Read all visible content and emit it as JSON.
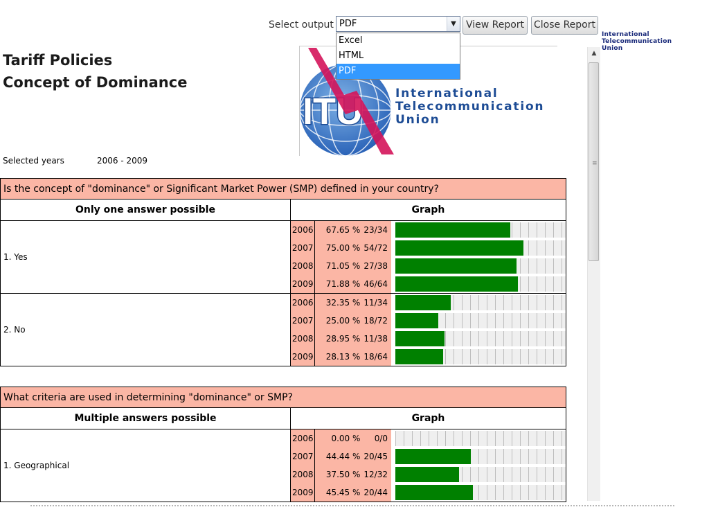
{
  "toolbar": {
    "output_label": "Select output",
    "selected_output": "PDF",
    "options": [
      "Excel",
      "HTML",
      "PDF"
    ],
    "view_report": "View Report",
    "close_report": "Close Report"
  },
  "corner_logo": [
    "International",
    "Telecommunication",
    "Union"
  ],
  "report": {
    "title_line1": "Tariff Policies",
    "title_line2": "Concept of Dominance",
    "logo_text": [
      "International",
      "Telecommunication",
      "Union"
    ],
    "logo_letters": "ITU",
    "selected_years_label": "Selected years",
    "selected_years_value": "2006 - 2009"
  },
  "questions": [
    {
      "question": "Is the concept of \"dominance\" or Significant Market Power (SMP) defined in your country?",
      "answers_header": "Only one answer possible",
      "graph_header": "Graph",
      "answers": [
        {
          "label": "1. Yes",
          "rows": [
            {
              "year": "2006",
              "pct": "67.65 %",
              "frac": "23/34",
              "value": 67.65
            },
            {
              "year": "2007",
              "pct": "75.00 %",
              "frac": "54/72",
              "value": 75.0
            },
            {
              "year": "2008",
              "pct": "71.05 %",
              "frac": "27/38",
              "value": 71.05
            },
            {
              "year": "2009",
              "pct": "71.88 %",
              "frac": "46/64",
              "value": 71.88
            }
          ]
        },
        {
          "label": "2. No",
          "rows": [
            {
              "year": "2006",
              "pct": "32.35 %",
              "frac": "11/34",
              "value": 32.35
            },
            {
              "year": "2007",
              "pct": "25.00 %",
              "frac": "18/72",
              "value": 25.0
            },
            {
              "year": "2008",
              "pct": "28.95 %",
              "frac": "11/38",
              "value": 28.95
            },
            {
              "year": "2009",
              "pct": "28.13 %",
              "frac": "18/64",
              "value": 28.13
            }
          ]
        }
      ]
    },
    {
      "question": "What criteria are used in determining \"dominance\" or SMP?",
      "answers_header": "Multiple answers possible",
      "graph_header": "Graph",
      "answers": [
        {
          "label": "1. Geographical",
          "rows": [
            {
              "year": "2006",
              "pct": "0.00 %",
              "frac": "0/0",
              "value": 0
            },
            {
              "year": "2007",
              "pct": "44.44 %",
              "frac": "20/45",
              "value": 44.44
            },
            {
              "year": "2008",
              "pct": "37.50 %",
              "frac": "12/32",
              "value": 37.5
            },
            {
              "year": "2009",
              "pct": "45.45 %",
              "frac": "20/44",
              "value": 45.45
            }
          ]
        }
      ]
    }
  ],
  "colors": {
    "bar": "#008000",
    "header_bg": "#fbb6a5",
    "logo_blue": "#1d4c95",
    "logo_red": "#d4145a"
  }
}
